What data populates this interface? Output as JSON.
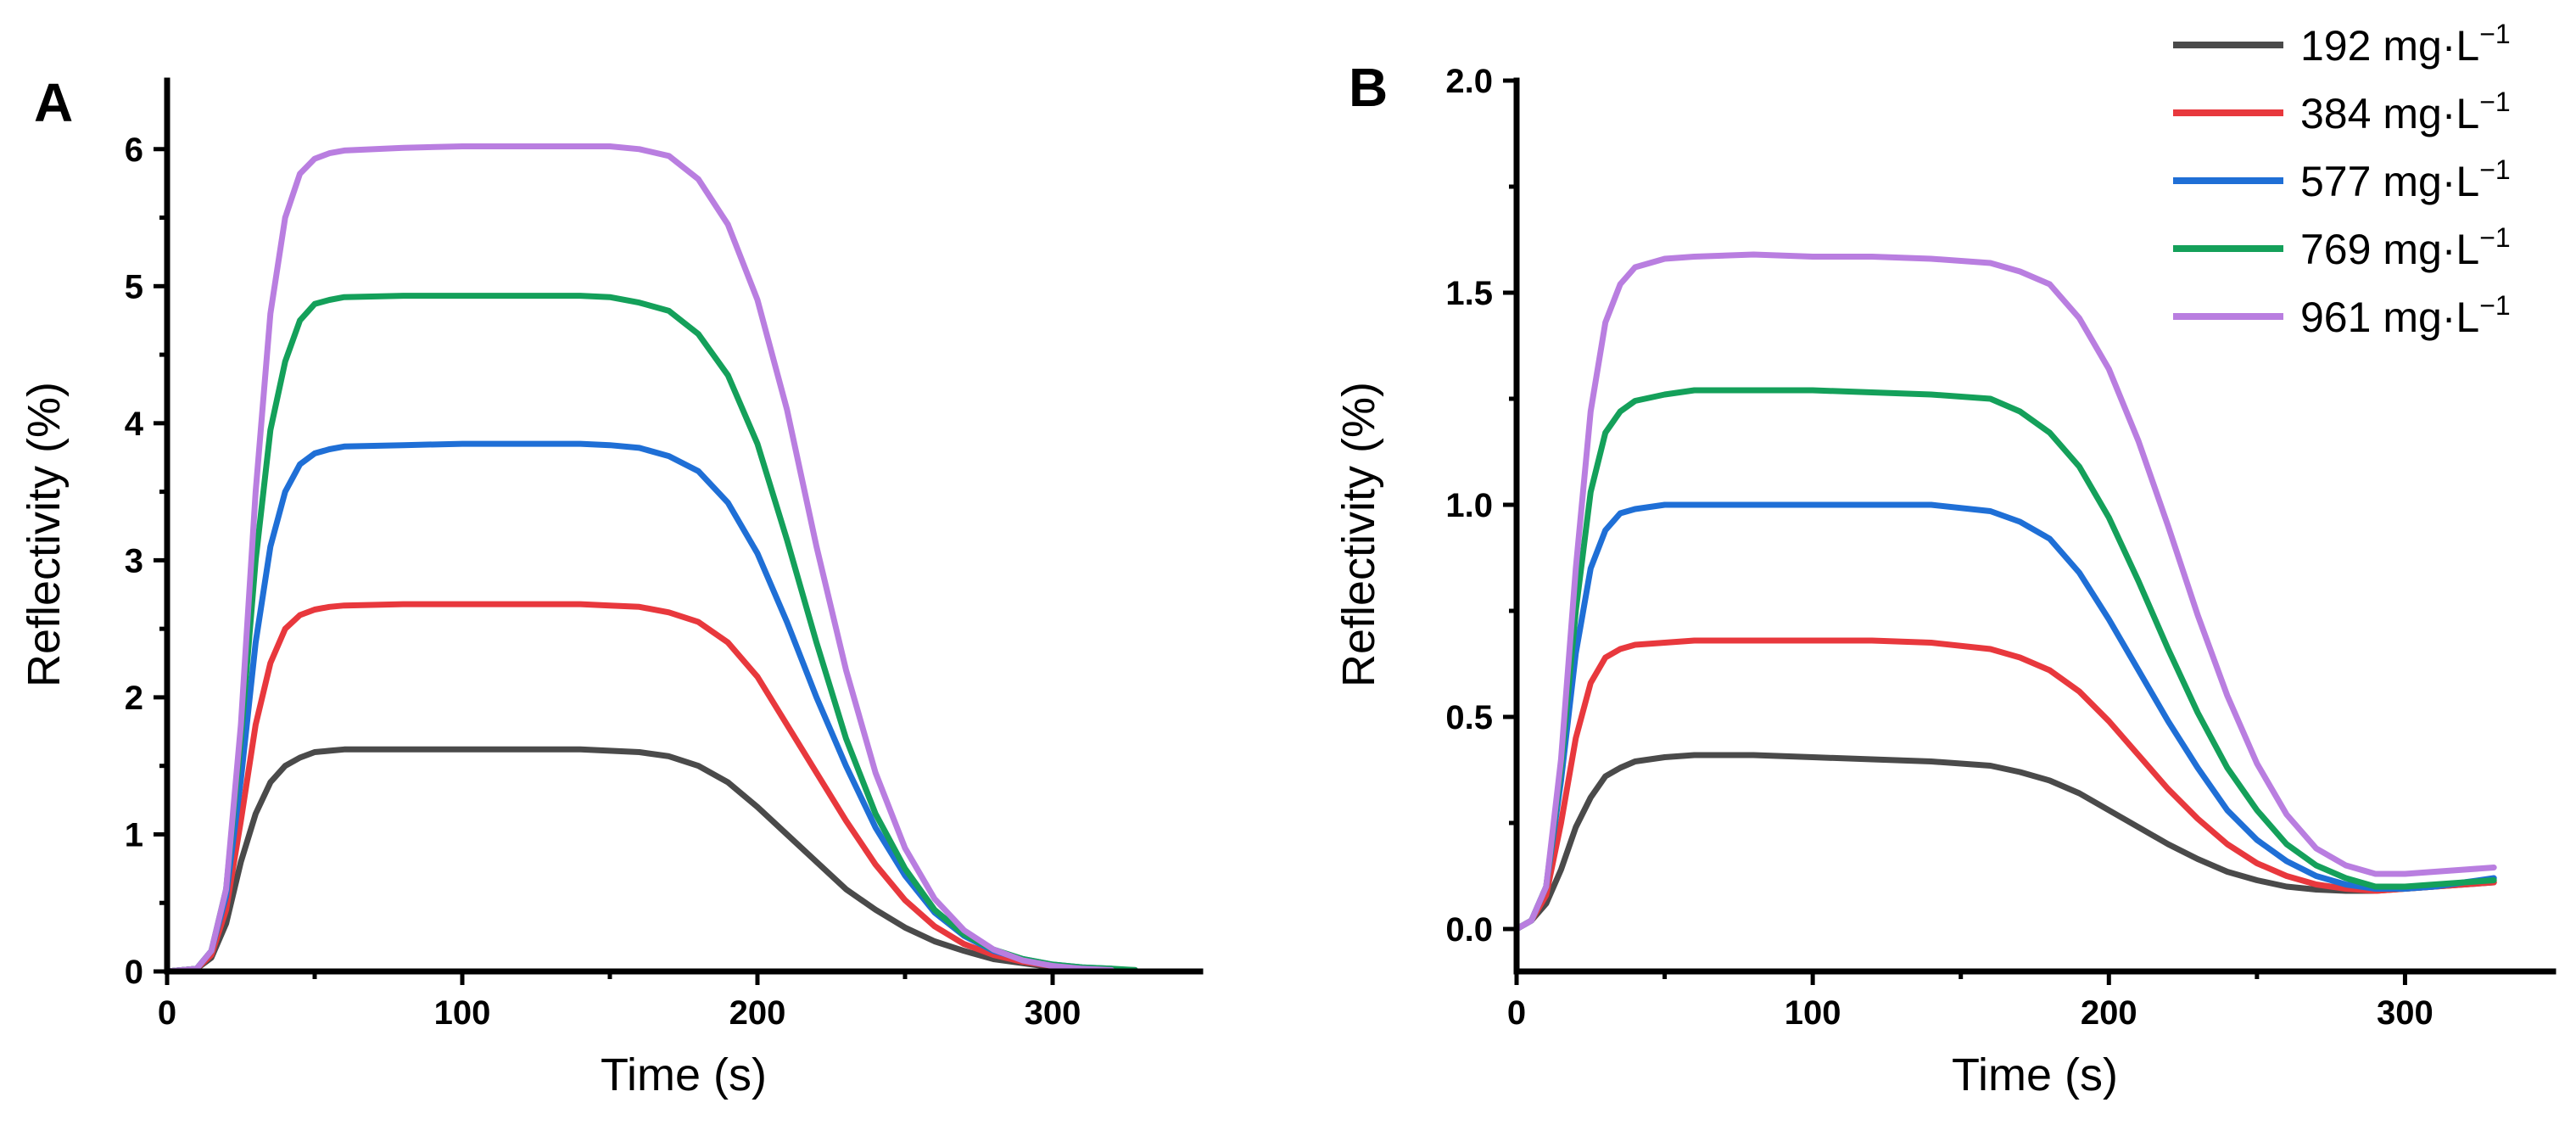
{
  "chart_data": [
    {
      "panel_label": "A",
      "type": "line",
      "xlabel": "Time (s)",
      "ylabel": "Reflectivity (%)",
      "xlim": [
        0,
        350
      ],
      "ylim": [
        0,
        6.5
      ],
      "xticks": [
        0,
        100,
        200,
        300
      ],
      "yticks": [
        0,
        1,
        2,
        3,
        4,
        5,
        6
      ],
      "xtick_labels": [
        "0",
        "100",
        "200",
        "300"
      ],
      "ytick_labels": [
        "0",
        "1",
        "2",
        "3",
        "4",
        "5",
        "6"
      ],
      "grid": false,
      "series": [
        {
          "name": "192 mg·L−1",
          "color": "#4a4a4a",
          "x": [
            0,
            10,
            15,
            20,
            25,
            30,
            35,
            40,
            45,
            50,
            55,
            60,
            80,
            100,
            120,
            140,
            150,
            160,
            170,
            180,
            190,
            200,
            210,
            220,
            230,
            240,
            250,
            260,
            270,
            280,
            290,
            300,
            310,
            320,
            328
          ],
          "y": [
            0,
            0.02,
            0.1,
            0.35,
            0.8,
            1.15,
            1.38,
            1.5,
            1.56,
            1.6,
            1.61,
            1.62,
            1.62,
            1.62,
            1.62,
            1.62,
            1.61,
            1.6,
            1.57,
            1.5,
            1.38,
            1.2,
            1.0,
            0.8,
            0.6,
            0.45,
            0.32,
            0.22,
            0.15,
            0.09,
            0.06,
            0.03,
            0.02,
            0.01,
            0.01
          ]
        },
        {
          "name": "384 mg·L−1",
          "color": "#e8383d",
          "x": [
            0,
            10,
            15,
            20,
            25,
            30,
            35,
            40,
            45,
            50,
            55,
            60,
            80,
            100,
            120,
            140,
            150,
            160,
            170,
            180,
            190,
            200,
            210,
            220,
            230,
            240,
            250,
            260,
            270,
            280,
            290,
            300,
            310,
            320
          ],
          "y": [
            0,
            0.02,
            0.12,
            0.45,
            1.1,
            1.8,
            2.25,
            2.5,
            2.6,
            2.64,
            2.66,
            2.67,
            2.68,
            2.68,
            2.68,
            2.68,
            2.67,
            2.66,
            2.62,
            2.55,
            2.4,
            2.15,
            1.8,
            1.45,
            1.1,
            0.78,
            0.52,
            0.33,
            0.2,
            0.12,
            0.07,
            0.04,
            0.02,
            0.01
          ]
        },
        {
          "name": "577 mg·L−1",
          "color": "#1f6fd6",
          "x": [
            0,
            10,
            15,
            20,
            25,
            30,
            35,
            40,
            45,
            50,
            55,
            60,
            80,
            100,
            120,
            140,
            150,
            160,
            170,
            180,
            190,
            200,
            210,
            220,
            230,
            240,
            250,
            260,
            270,
            280,
            290,
            300,
            310,
            320
          ],
          "y": [
            0,
            0.02,
            0.15,
            0.55,
            1.4,
            2.4,
            3.1,
            3.5,
            3.7,
            3.78,
            3.81,
            3.83,
            3.84,
            3.85,
            3.85,
            3.85,
            3.84,
            3.82,
            3.76,
            3.65,
            3.42,
            3.05,
            2.55,
            2.0,
            1.5,
            1.05,
            0.7,
            0.43,
            0.26,
            0.15,
            0.09,
            0.05,
            0.03,
            0.02
          ]
        },
        {
          "name": "769 mg·L−1",
          "color": "#14a05a",
          "x": [
            0,
            10,
            15,
            20,
            25,
            30,
            35,
            40,
            45,
            50,
            55,
            60,
            80,
            100,
            120,
            140,
            150,
            160,
            170,
            180,
            190,
            200,
            210,
            220,
            230,
            240,
            250,
            260,
            270,
            280,
            290,
            300,
            310,
            320,
            328
          ],
          "y": [
            0,
            0.02,
            0.15,
            0.6,
            1.7,
            3.0,
            3.95,
            4.45,
            4.75,
            4.87,
            4.9,
            4.92,
            4.93,
            4.93,
            4.93,
            4.93,
            4.92,
            4.88,
            4.82,
            4.65,
            4.35,
            3.85,
            3.15,
            2.4,
            1.7,
            1.15,
            0.75,
            0.45,
            0.27,
            0.16,
            0.09,
            0.05,
            0.03,
            0.02,
            0.01
          ]
        },
        {
          "name": "961 mg·L−1",
          "color": "#b97ee0",
          "x": [
            0,
            10,
            15,
            20,
            25,
            30,
            35,
            40,
            45,
            50,
            55,
            60,
            80,
            100,
            120,
            140,
            150,
            160,
            170,
            180,
            190,
            200,
            210,
            220,
            230,
            240,
            250,
            260,
            270,
            280,
            290,
            300,
            310,
            320
          ],
          "y": [
            0,
            0.02,
            0.15,
            0.6,
            1.8,
            3.5,
            4.8,
            5.5,
            5.82,
            5.93,
            5.97,
            5.99,
            6.01,
            6.02,
            6.02,
            6.02,
            6.02,
            6.0,
            5.95,
            5.78,
            5.45,
            4.9,
            4.1,
            3.1,
            2.2,
            1.45,
            0.9,
            0.53,
            0.3,
            0.16,
            0.08,
            0.04,
            0.02,
            0.01
          ]
        }
      ]
    },
    {
      "panel_label": "B",
      "type": "line",
      "xlabel": "Time (s)",
      "ylabel": "Reflectivity (%)",
      "xlim": [
        0,
        350
      ],
      "ylim": [
        -0.1,
        2.0
      ],
      "xticks": [
        0,
        100,
        200,
        300
      ],
      "yticks": [
        0,
        0.5,
        1.0,
        1.5,
        2.0
      ],
      "xtick_labels": [
        "0",
        "100",
        "200",
        "300"
      ],
      "ytick_labels": [
        "0.0",
        "0.5",
        "1.0",
        "1.5",
        "2.0"
      ],
      "grid": false,
      "legend_position": "top-right",
      "series": [
        {
          "name": "192 mg·L−1",
          "color": "#4a4a4a",
          "x": [
            0,
            5,
            10,
            15,
            20,
            25,
            30,
            35,
            40,
            50,
            60,
            80,
            100,
            120,
            140,
            160,
            170,
            180,
            190,
            200,
            210,
            220,
            230,
            240,
            250,
            260,
            270,
            280,
            290,
            300,
            310,
            320,
            330
          ],
          "y": [
            0,
            0.02,
            0.06,
            0.14,
            0.24,
            0.31,
            0.36,
            0.38,
            0.395,
            0.405,
            0.41,
            0.41,
            0.405,
            0.4,
            0.395,
            0.385,
            0.37,
            0.35,
            0.32,
            0.28,
            0.24,
            0.2,
            0.165,
            0.135,
            0.115,
            0.1,
            0.093,
            0.09,
            0.09,
            0.095,
            0.1,
            0.105,
            0.11
          ]
        },
        {
          "name": "384 mg·L−1",
          "color": "#e8383d",
          "x": [
            0,
            5,
            10,
            15,
            20,
            25,
            30,
            35,
            40,
            50,
            60,
            80,
            100,
            120,
            140,
            160,
            170,
            180,
            190,
            200,
            210,
            220,
            230,
            240,
            250,
            260,
            270,
            280,
            290,
            300,
            310,
            320,
            330
          ],
          "y": [
            0,
            0.02,
            0.08,
            0.25,
            0.45,
            0.58,
            0.64,
            0.66,
            0.67,
            0.675,
            0.68,
            0.68,
            0.68,
            0.68,
            0.675,
            0.66,
            0.64,
            0.61,
            0.56,
            0.49,
            0.41,
            0.33,
            0.26,
            0.2,
            0.155,
            0.125,
            0.105,
            0.095,
            0.09,
            0.095,
            0.1,
            0.105,
            0.11
          ]
        },
        {
          "name": "577 mg·L−1",
          "color": "#1f6fd6",
          "x": [
            0,
            5,
            10,
            15,
            20,
            25,
            30,
            35,
            40,
            50,
            60,
            80,
            100,
            120,
            140,
            160,
            170,
            180,
            190,
            200,
            210,
            220,
            230,
            240,
            250,
            260,
            270,
            280,
            290,
            300,
            310,
            320,
            330
          ],
          "y": [
            0,
            0.02,
            0.1,
            0.35,
            0.65,
            0.85,
            0.94,
            0.98,
            0.99,
            1.0,
            1.0,
            1.0,
            1.0,
            1.0,
            1.0,
            0.985,
            0.96,
            0.92,
            0.84,
            0.73,
            0.61,
            0.49,
            0.38,
            0.28,
            0.21,
            0.16,
            0.125,
            0.105,
            0.095,
            0.095,
            0.1,
            0.11,
            0.12
          ]
        },
        {
          "name": "769 mg·L−1",
          "color": "#14a05a",
          "x": [
            0,
            5,
            10,
            15,
            20,
            25,
            30,
            35,
            40,
            50,
            60,
            80,
            100,
            120,
            140,
            160,
            170,
            180,
            190,
            200,
            210,
            220,
            230,
            240,
            250,
            260,
            270,
            280,
            290,
            300,
            310,
            320,
            330
          ],
          "y": [
            0,
            0.02,
            0.1,
            0.38,
            0.75,
            1.03,
            1.17,
            1.22,
            1.245,
            1.26,
            1.27,
            1.27,
            1.27,
            1.265,
            1.26,
            1.25,
            1.22,
            1.17,
            1.09,
            0.97,
            0.82,
            0.66,
            0.51,
            0.38,
            0.28,
            0.2,
            0.15,
            0.12,
            0.1,
            0.1,
            0.105,
            0.11,
            0.115
          ]
        },
        {
          "name": "961 mg·L−1",
          "color": "#b97ee0",
          "x": [
            0,
            5,
            10,
            15,
            20,
            25,
            30,
            35,
            40,
            50,
            60,
            80,
            100,
            120,
            140,
            160,
            170,
            180,
            190,
            200,
            210,
            220,
            230,
            240,
            250,
            260,
            270,
            280,
            290,
            300,
            310,
            320,
            330
          ],
          "y": [
            0,
            0.02,
            0.1,
            0.4,
            0.85,
            1.22,
            1.43,
            1.52,
            1.56,
            1.58,
            1.585,
            1.59,
            1.585,
            1.585,
            1.58,
            1.57,
            1.55,
            1.52,
            1.44,
            1.32,
            1.15,
            0.95,
            0.74,
            0.55,
            0.39,
            0.27,
            0.19,
            0.15,
            0.13,
            0.13,
            0.135,
            0.14,
            0.145
          ]
        }
      ]
    }
  ],
  "legend": [
    {
      "value": "192 mg·L",
      "sup": "−1",
      "color": "#4a4a4a"
    },
    {
      "value": "384 mg·L",
      "sup": "−1",
      "color": "#e8383d"
    },
    {
      "value": "577 mg·L",
      "sup": "−1",
      "color": "#1f6fd6"
    },
    {
      "value": "769 mg·L",
      "sup": "−1",
      "color": "#14a05a"
    },
    {
      "value": "961 mg·L",
      "sup": "−1",
      "color": "#b97ee0"
    }
  ]
}
